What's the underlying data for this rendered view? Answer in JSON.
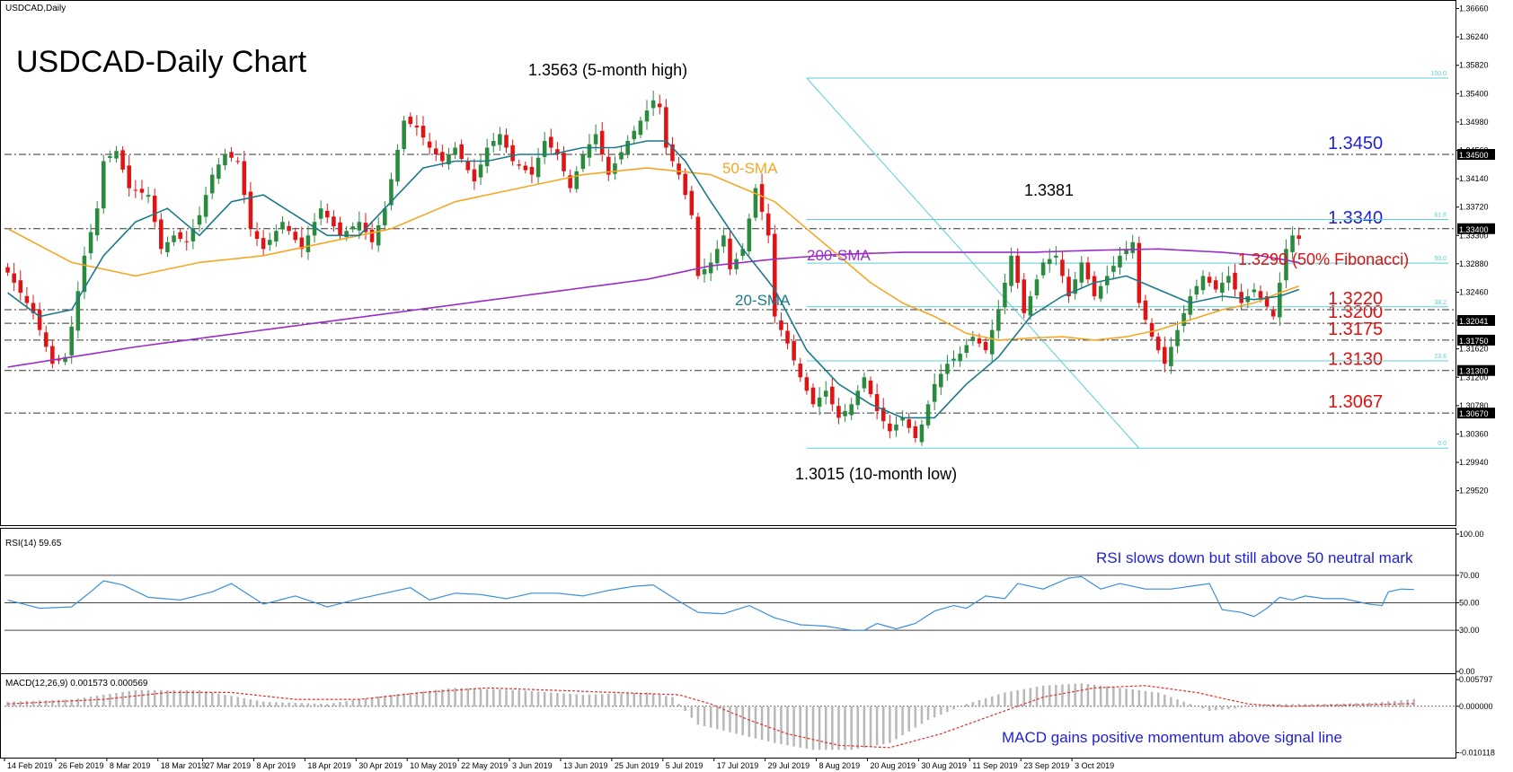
{
  "chart_data": {
    "type": "candlestick",
    "symbol_label": "USDCAD,Daily",
    "title": "USDCAD-Daily Chart",
    "price_axis": {
      "range": [
        1.2905,
        1.3672
      ],
      "ticks": [
        "1.36660",
        "1.36240",
        "1.35820",
        "1.35400",
        "1.34980",
        "1.34560",
        "1.34140",
        "1.33720",
        "1.33300",
        "1.32880",
        "1.32460",
        "1.32040",
        "1.31620",
        "1.31200",
        "1.30780",
        "1.30360",
        "1.29940",
        "1.29520"
      ],
      "ticks_values": [
        1.3666,
        1.3624,
        1.3582,
        1.354,
        1.3498,
        1.3456,
        1.3414,
        1.3372,
        1.333,
        1.3288,
        1.3246,
        1.3204,
        1.3162,
        1.312,
        1.3078,
        1.3036,
        1.2994,
        1.2952
      ],
      "level_badges": [
        {
          "label": "1.34500",
          "value": 1.345
        },
        {
          "label": "1.33400",
          "value": 1.334
        },
        {
          "label": "1.32041",
          "value": 1.32041
        },
        {
          "label": "1.31750",
          "value": 1.3175
        },
        {
          "label": "1.31300",
          "value": 1.313
        },
        {
          "label": "1.30670",
          "value": 1.3067
        }
      ]
    },
    "x_axis": {
      "labels": [
        "14 Feb 2019",
        "26 Feb 2019",
        "8 Mar 2019",
        "18 Mar 2019",
        "27 Mar 2019",
        "8 Apr 2019",
        "18 Apr 2019",
        "30 Apr 2019",
        "10 May 2019",
        "22 May 2019",
        "3 Jun 2019",
        "13 Jun 2019",
        "25 Jun 2019",
        "5 Jul 2019",
        "17 Jul 2019",
        "29 Jul 2019",
        "8 Aug 2019",
        "20 Aug 2019",
        "30 Aug 2019",
        "11 Sep 2019",
        "23 Sep 2019",
        "3 Oct 2019"
      ],
      "label_bar_index": [
        0,
        8,
        16,
        24,
        31,
        39,
        47,
        55,
        63,
        71,
        79,
        87,
        95,
        103,
        111,
        119,
        127,
        135,
        143,
        151,
        159,
        167
      ]
    },
    "horizontal_levels": [
      {
        "value": 1.345,
        "label": "1.3450",
        "label_color": "#1f1fd6"
      },
      {
        "value": 1.334,
        "label": "1.3340",
        "label_color": "#1f1fd6"
      },
      {
        "value": 1.322,
        "label": "1.3220",
        "label_color": "#e01010"
      },
      {
        "value": 1.32,
        "label": "1.3200",
        "label_color": "#e01010"
      },
      {
        "value": 1.3175,
        "label": "1.3175",
        "label_color": "#e01010"
      },
      {
        "value": 1.313,
        "label": "1.3130",
        "label_color": "#e01010"
      },
      {
        "value": 1.3067,
        "label": "1.3067",
        "label_color": "#e01010"
      }
    ],
    "fibonacci": {
      "levels": [
        {
          "ratio": "100.0",
          "value": 1.3563
        },
        {
          "ratio": "61.8",
          "value": 1.33537
        },
        {
          "ratio": "50.0",
          "value": 1.3289
        },
        {
          "ratio": "38.2",
          "value": 1.32243
        },
        {
          "ratio": "23.6",
          "value": 1.31443
        },
        {
          "ratio": "0.0",
          "value": 1.3015
        }
      ],
      "line_label": "1.3290 (50% Fibonacci)"
    },
    "annotations": {
      "high": "1.3563 (5-month high)",
      "low": "1.3015 (10-month  low)",
      "peak": "1.3381",
      "sma50": "50-SMA",
      "sma200": "200-SMA",
      "sma20": "20-SMA"
    },
    "price_key_points": [
      [
        0,
        1.3275
      ],
      [
        4,
        1.3215
      ],
      [
        7,
        1.314
      ],
      [
        9,
        1.315
      ],
      [
        10,
        1.3195
      ],
      [
        12,
        1.33
      ],
      [
        14,
        1.337
      ],
      [
        15,
        1.344
      ],
      [
        17,
        1.3455
      ],
      [
        19,
        1.34
      ],
      [
        22,
        1.339
      ],
      [
        24,
        1.331
      ],
      [
        26,
        1.333
      ],
      [
        28,
        1.332
      ],
      [
        30,
        1.336
      ],
      [
        32,
        1.342
      ],
      [
        34,
        1.345
      ],
      [
        36,
        1.344
      ],
      [
        38,
        1.334
      ],
      [
        40,
        1.331
      ],
      [
        43,
        1.335
      ],
      [
        46,
        1.331
      ],
      [
        49,
        1.337
      ],
      [
        52,
        1.333
      ],
      [
        55,
        1.335
      ],
      [
        57,
        1.332
      ],
      [
        59,
        1.337
      ],
      [
        62,
        1.35
      ],
      [
        64,
        1.349
      ],
      [
        66,
        1.346
      ],
      [
        68,
        1.344
      ],
      [
        70,
        1.346
      ],
      [
        73,
        1.341
      ],
      [
        75,
        1.346
      ],
      [
        77,
        1.348
      ],
      [
        79,
        1.344
      ],
      [
        82,
        1.342
      ],
      [
        84,
        1.347
      ],
      [
        86,
        1.345
      ],
      [
        88,
        1.34
      ],
      [
        90,
        1.345
      ],
      [
        92,
        1.348
      ],
      [
        94,
        1.342
      ],
      [
        97,
        1.347
      ],
      [
        99,
        1.35
      ],
      [
        101,
        1.353
      ],
      [
        102,
        1.352
      ],
      [
        103,
        1.346
      ],
      [
        105,
        1.342
      ],
      [
        107,
        1.336
      ],
      [
        108,
        1.327
      ],
      [
        110,
        1.329
      ],
      [
        112,
        1.333
      ],
      [
        113,
        1.328
      ],
      [
        115,
        1.331
      ],
      [
        117,
        1.34
      ],
      [
        119,
        1.333
      ],
      [
        120,
        1.321
      ],
      [
        122,
        1.317
      ],
      [
        124,
        1.312
      ],
      [
        126,
        1.308
      ],
      [
        128,
        1.31
      ],
      [
        130,
        1.306
      ],
      [
        132,
        1.308
      ],
      [
        134,
        1.312
      ],
      [
        136,
        1.307
      ],
      [
        138,
        1.304
      ],
      [
        140,
        1.306
      ],
      [
        142,
        1.303
      ],
      [
        143,
        1.305
      ],
      [
        145,
        1.311
      ],
      [
        147,
        1.314
      ],
      [
        149,
        1.3155
      ],
      [
        151,
        1.318
      ],
      [
        153,
        1.316
      ],
      [
        155,
        1.322
      ],
      [
        157,
        1.33
      ],
      [
        158,
        1.326
      ],
      [
        159,
        1.3215
      ],
      [
        160,
        1.324
      ],
      [
        162,
        1.329
      ],
      [
        164,
        1.33
      ],
      [
        166,
        1.324
      ],
      [
        168,
        1.329
      ],
      [
        170,
        1.324
      ],
      [
        172,
        1.327
      ],
      [
        174,
        1.33
      ],
      [
        176,
        1.332
      ],
      [
        177,
        1.323
      ],
      [
        179,
        1.318
      ],
      [
        181,
        1.314
      ],
      [
        183,
        1.319
      ],
      [
        185,
        1.324
      ],
      [
        187,
        1.327
      ],
      [
        189,
        1.325
      ],
      [
        191,
        1.327
      ],
      [
        193,
        1.323
      ],
      [
        195,
        1.325
      ],
      [
        197,
        1.3225
      ],
      [
        198,
        1.321
      ],
      [
        199,
        1.326
      ],
      [
        200,
        1.331
      ],
      [
        201,
        1.333
      ],
      [
        202,
        1.3325
      ]
    ],
    "sma20_points": [
      [
        0,
        1.3245
      ],
      [
        5,
        1.321
      ],
      [
        10,
        1.322
      ],
      [
        15,
        1.33
      ],
      [
        20,
        1.335
      ],
      [
        25,
        1.337
      ],
      [
        30,
        1.333
      ],
      [
        35,
        1.338
      ],
      [
        40,
        1.339
      ],
      [
        45,
        1.336
      ],
      [
        50,
        1.333
      ],
      [
        55,
        1.333
      ],
      [
        60,
        1.338
      ],
      [
        65,
        1.343
      ],
      [
        70,
        1.344
      ],
      [
        75,
        1.344
      ],
      [
        80,
        1.345
      ],
      [
        85,
        1.345
      ],
      [
        90,
        1.346
      ],
      [
        95,
        1.346
      ],
      [
        100,
        1.347
      ],
      [
        103,
        1.347
      ],
      [
        106,
        1.344
      ],
      [
        110,
        1.338
      ],
      [
        115,
        1.331
      ],
      [
        120,
        1.325
      ],
      [
        125,
        1.316
      ],
      [
        130,
        1.311
      ],
      [
        135,
        1.308
      ],
      [
        140,
        1.306
      ],
      [
        145,
        1.306
      ],
      [
        150,
        1.311
      ],
      [
        155,
        1.315
      ],
      [
        160,
        1.321
      ],
      [
        165,
        1.324
      ],
      [
        170,
        1.326
      ],
      [
        175,
        1.327
      ],
      [
        180,
        1.325
      ],
      [
        185,
        1.323
      ],
      [
        190,
        1.324
      ],
      [
        195,
        1.3235
      ],
      [
        199,
        1.324
      ],
      [
        202,
        1.325
      ]
    ],
    "sma50_points": [
      [
        0,
        1.334
      ],
      [
        10,
        1.329
      ],
      [
        15,
        1.328
      ],
      [
        20,
        1.327
      ],
      [
        30,
        1.329
      ],
      [
        40,
        1.33
      ],
      [
        50,
        1.332
      ],
      [
        60,
        1.334
      ],
      [
        70,
        1.338
      ],
      [
        80,
        1.34
      ],
      [
        90,
        1.342
      ],
      [
        100,
        1.343
      ],
      [
        110,
        1.342
      ],
      [
        120,
        1.338
      ],
      [
        125,
        1.334
      ],
      [
        130,
        1.33
      ],
      [
        135,
        1.326
      ],
      [
        140,
        1.323
      ],
      [
        145,
        1.321
      ],
      [
        150,
        1.3185
      ],
      [
        155,
        1.3175
      ],
      [
        160,
        1.3178
      ],
      [
        165,
        1.318
      ],
      [
        170,
        1.3175
      ],
      [
        175,
        1.318
      ],
      [
        180,
        1.319
      ],
      [
        185,
        1.3205
      ],
      [
        190,
        1.322
      ],
      [
        195,
        1.323
      ],
      [
        199,
        1.3245
      ],
      [
        202,
        1.3255
      ]
    ],
    "sma200_points": [
      [
        0,
        1.3135
      ],
      [
        20,
        1.3165
      ],
      [
        40,
        1.319
      ],
      [
        60,
        1.3215
      ],
      [
        80,
        1.324
      ],
      [
        100,
        1.3265
      ],
      [
        110,
        1.3285
      ],
      [
        120,
        1.3295
      ],
      [
        130,
        1.3302
      ],
      [
        140,
        1.3305
      ],
      [
        150,
        1.3305
      ],
      [
        160,
        1.3305
      ],
      [
        170,
        1.3308
      ],
      [
        180,
        1.331
      ],
      [
        190,
        1.3305
      ],
      [
        196,
        1.33
      ],
      [
        202,
        1.329
      ]
    ],
    "rsi": {
      "header": "RSI(14) 59.65",
      "ticks": [
        "100.00",
        "70.00",
        "50.00",
        "30.00",
        "0.00"
      ],
      "ticks_values": [
        100,
        70,
        50,
        30,
        0
      ],
      "levels": [
        70,
        50,
        30
      ],
      "note": "RSI slows down but still above 50 neutral mark",
      "points": [
        [
          0,
          52
        ],
        [
          5,
          46
        ],
        [
          10,
          47
        ],
        [
          13,
          58
        ],
        [
          15,
          66
        ],
        [
          18,
          63
        ],
        [
          22,
          54
        ],
        [
          27,
          52
        ],
        [
          32,
          58
        ],
        [
          35,
          64
        ],
        [
          40,
          49
        ],
        [
          45,
          55
        ],
        [
          50,
          47
        ],
        [
          55,
          53
        ],
        [
          60,
          58
        ],
        [
          63,
          61
        ],
        [
          66,
          52
        ],
        [
          70,
          57
        ],
        [
          74,
          56
        ],
        [
          78,
          53
        ],
        [
          82,
          57
        ],
        [
          86,
          57
        ],
        [
          90,
          55
        ],
        [
          94,
          59
        ],
        [
          98,
          62
        ],
        [
          101,
          63
        ],
        [
          104,
          54
        ],
        [
          108,
          43
        ],
        [
          112,
          42
        ],
        [
          116,
          48
        ],
        [
          120,
          39
        ],
        [
          124,
          34
        ],
        [
          128,
          33
        ],
        [
          132,
          30
        ],
        [
          134,
          30
        ],
        [
          136,
          35
        ],
        [
          139,
          31
        ],
        [
          142,
          35
        ],
        [
          145,
          44
        ],
        [
          148,
          48
        ],
        [
          150,
          46
        ],
        [
          153,
          55
        ],
        [
          156,
          53
        ],
        [
          158,
          64
        ],
        [
          162,
          60
        ],
        [
          166,
          68
        ],
        [
          168,
          69
        ],
        [
          171,
          60
        ],
        [
          174,
          64
        ],
        [
          178,
          60
        ],
        [
          182,
          60
        ],
        [
          185,
          62
        ],
        [
          188,
          64
        ],
        [
          190,
          45
        ],
        [
          193,
          43
        ],
        [
          195,
          40
        ],
        [
          197,
          46
        ],
        [
          199,
          54
        ],
        [
          201,
          52
        ],
        [
          203,
          55
        ],
        [
          206,
          53
        ],
        [
          209,
          53
        ],
        [
          213,
          49
        ],
        [
          215,
          48
        ],
        [
          216,
          58
        ],
        [
          218,
          60
        ],
        [
          220,
          59.65
        ]
      ]
    },
    "macd": {
      "header": "MACD(12,26,9) 0.001573 0.000569",
      "ticks": [
        "0.005797",
        "0.000000",
        "-0.010118"
      ],
      "ticks_values": [
        0.005797,
        0,
        -0.010118
      ],
      "note": "MACD gains positive momentum above signal line",
      "hist_points": [
        [
          0,
          0.001
        ],
        [
          10,
          0.0015
        ],
        [
          20,
          0.0035
        ],
        [
          30,
          0.0035
        ],
        [
          40,
          0.001
        ],
        [
          50,
          0.0005
        ],
        [
          60,
          0.0025
        ],
        [
          70,
          0.004
        ],
        [
          80,
          0.0035
        ],
        [
          90,
          0.0025
        ],
        [
          100,
          0.003
        ],
        [
          104,
          0.002
        ],
        [
          108,
          -0.004
        ],
        [
          114,
          -0.006
        ],
        [
          120,
          -0.008
        ],
        [
          126,
          -0.0095
        ],
        [
          132,
          -0.0095
        ],
        [
          138,
          -0.008
        ],
        [
          144,
          -0.003
        ],
        [
          150,
          0.0005
        ],
        [
          156,
          0.003
        ],
        [
          162,
          0.0045
        ],
        [
          168,
          0.005
        ],
        [
          174,
          0.004
        ],
        [
          180,
          0.003
        ],
        [
          184,
          0.001
        ],
        [
          188,
          -0.001
        ],
        [
          192,
          -0.0005
        ],
        [
          198,
          0.0005
        ],
        [
          206,
          0.0005
        ],
        [
          214,
          0.0008
        ],
        [
          220,
          0.0016
        ]
      ],
      "signal_points": [
        [
          0,
          0.0005
        ],
        [
          15,
          0.0015
        ],
        [
          25,
          0.003
        ],
        [
          35,
          0.003
        ],
        [
          45,
          0.0015
        ],
        [
          55,
          0.0015
        ],
        [
          65,
          0.003
        ],
        [
          75,
          0.004
        ],
        [
          85,
          0.0035
        ],
        [
          95,
          0.003
        ],
        [
          105,
          0.0025
        ],
        [
          110,
          0.0005
        ],
        [
          116,
          -0.003
        ],
        [
          122,
          -0.006
        ],
        [
          130,
          -0.0085
        ],
        [
          138,
          -0.009
        ],
        [
          146,
          -0.006
        ],
        [
          154,
          -0.002
        ],
        [
          162,
          0.002
        ],
        [
          170,
          0.004
        ],
        [
          178,
          0.0045
        ],
        [
          186,
          0.003
        ],
        [
          194,
          0.0005
        ],
        [
          200,
          0.0
        ],
        [
          208,
          0.0002
        ],
        [
          214,
          0.0004
        ],
        [
          220,
          0.00057
        ]
      ]
    },
    "colors": {
      "bull": "#2a8a3e",
      "bear": "#e01414",
      "sma20": "#1a7a88",
      "sma50": "#f5a623",
      "sma200": "#9a2ec6",
      "rsi": "#3a8fdc",
      "fib": "#5ccfd6",
      "level": "#333333",
      "macd_hist": "#b8b8b8",
      "macd_signal": "#e03030"
    }
  }
}
